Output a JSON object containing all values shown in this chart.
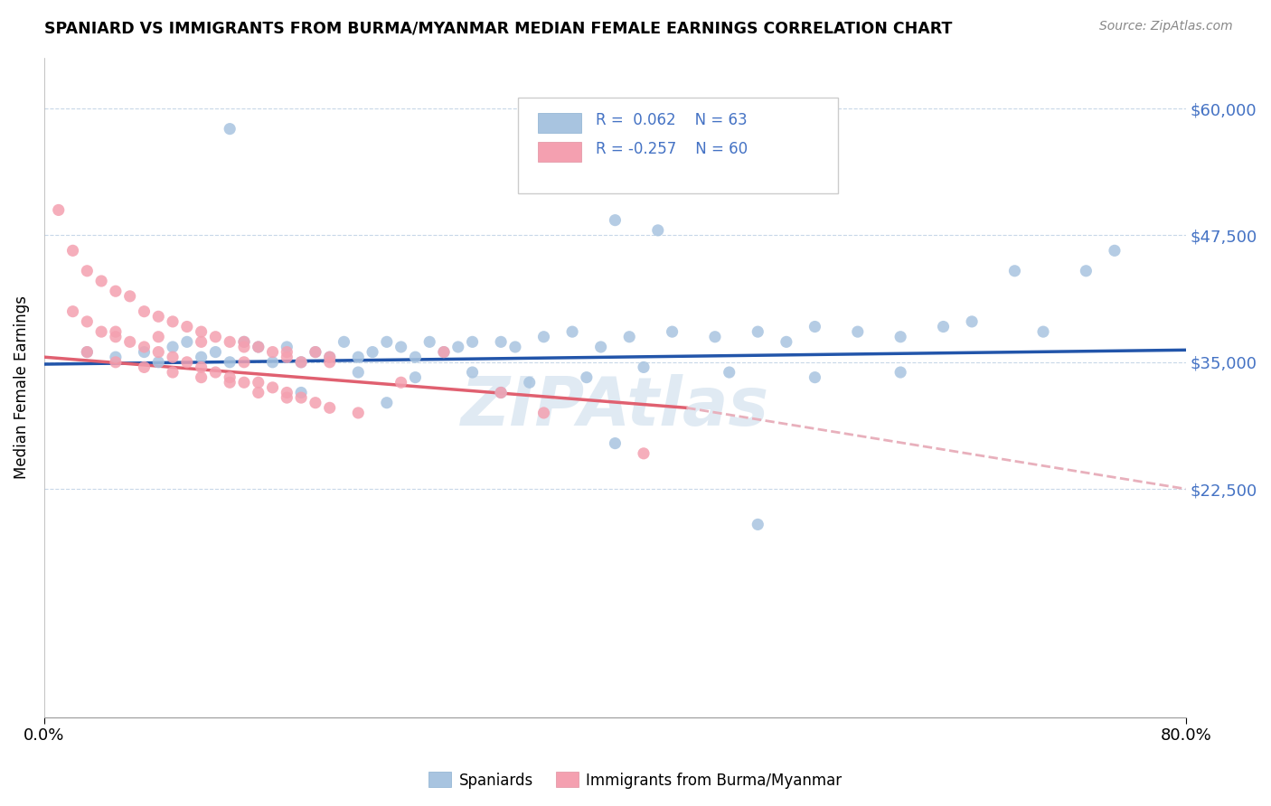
{
  "title": "SPANIARD VS IMMIGRANTS FROM BURMA/MYANMAR MEDIAN FEMALE EARNINGS CORRELATION CHART",
  "source": "Source: ZipAtlas.com",
  "ylabel": "Median Female Earnings",
  "yticks": [
    0,
    22500,
    35000,
    47500,
    60000
  ],
  "ytick_labels": [
    "",
    "$22,500",
    "$35,000",
    "$47,500",
    "$60,000"
  ],
  "xmin": 0.0,
  "xmax": 80.0,
  "ymin": 0,
  "ymax": 65000,
  "color_blue": "#a8c4e0",
  "color_pink": "#f4a0b0",
  "line_blue": "#2255aa",
  "line_pink": "#e06070",
  "line_dashed": "#e8b0bc",
  "watermark": "ZIPAtlas",
  "background": "#ffffff",
  "grid_color": "#c8d8e8",
  "spaniards_x": [
    13,
    36,
    40,
    43,
    3,
    5,
    7,
    8,
    9,
    10,
    11,
    12,
    13,
    14,
    15,
    16,
    17,
    18,
    19,
    20,
    21,
    22,
    23,
    24,
    25,
    26,
    27,
    28,
    29,
    30,
    32,
    33,
    35,
    37,
    39,
    41,
    44,
    47,
    50,
    52,
    54,
    57,
    60,
    63,
    65,
    68,
    70,
    73,
    75,
    22,
    26,
    30,
    34,
    38,
    42,
    48,
    54,
    60,
    18,
    24,
    32,
    40,
    50
  ],
  "spaniards_y": [
    58000,
    53000,
    49000,
    48000,
    36000,
    35500,
    36000,
    35000,
    36500,
    37000,
    35500,
    36000,
    35000,
    37000,
    36500,
    35000,
    36500,
    35000,
    36000,
    35500,
    37000,
    35500,
    36000,
    37000,
    36500,
    35500,
    37000,
    36000,
    36500,
    37000,
    37000,
    36500,
    37500,
    38000,
    36500,
    37500,
    38000,
    37500,
    38000,
    37000,
    38500,
    38000,
    37500,
    38500,
    39000,
    44000,
    38000,
    44000,
    46000,
    34000,
    33500,
    34000,
    33000,
    33500,
    34500,
    34000,
    33500,
    34000,
    32000,
    31000,
    32000,
    27000,
    19000
  ],
  "burma_x": [
    1,
    2,
    3,
    4,
    5,
    6,
    7,
    8,
    9,
    10,
    11,
    12,
    13,
    14,
    15,
    16,
    17,
    18,
    19,
    20,
    2,
    3,
    4,
    5,
    6,
    7,
    8,
    9,
    10,
    11,
    12,
    13,
    14,
    15,
    16,
    17,
    18,
    19,
    20,
    3,
    5,
    7,
    9,
    11,
    13,
    15,
    17,
    22,
    28,
    35,
    42,
    14,
    25,
    32,
    5,
    8,
    11,
    14,
    17,
    20
  ],
  "burma_y": [
    50000,
    46000,
    44000,
    43000,
    42000,
    41500,
    40000,
    39500,
    39000,
    38500,
    38000,
    37500,
    37000,
    37000,
    36500,
    36000,
    35500,
    35000,
    36000,
    35500,
    40000,
    39000,
    38000,
    37500,
    37000,
    36500,
    36000,
    35500,
    35000,
    34500,
    34000,
    33500,
    33000,
    33000,
    32500,
    32000,
    31500,
    31000,
    30500,
    36000,
    35000,
    34500,
    34000,
    33500,
    33000,
    32000,
    31500,
    30000,
    36000,
    30000,
    26000,
    35000,
    33000,
    32000,
    38000,
    37500,
    37000,
    36500,
    36000,
    35000
  ]
}
